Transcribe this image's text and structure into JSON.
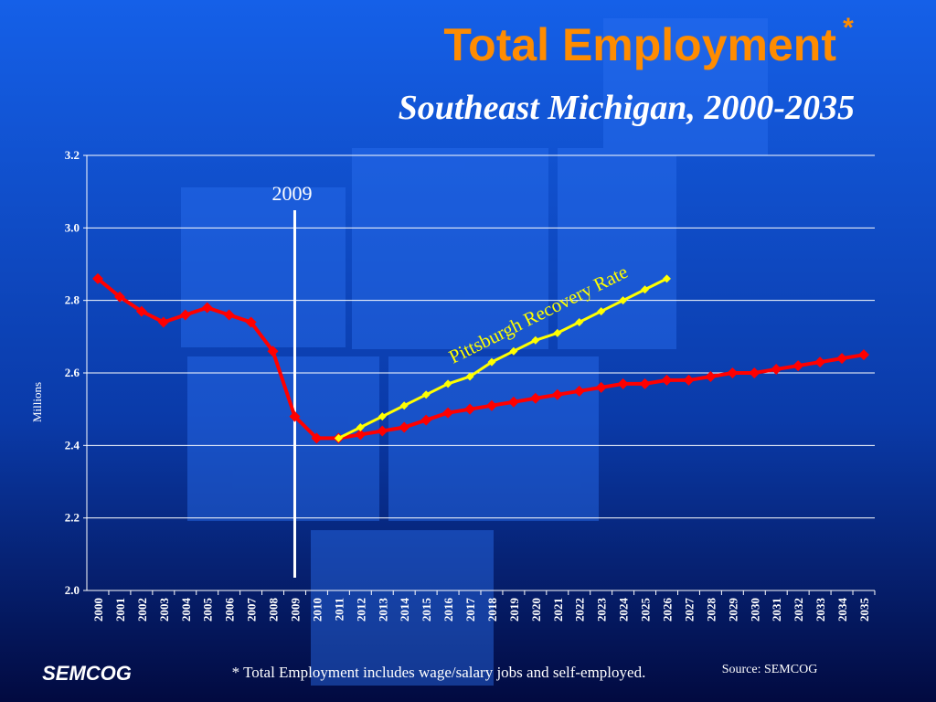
{
  "chart_data": {
    "type": "line",
    "title": "Total Employment",
    "title_mark": "*",
    "subtitle": "Southeast Michigan, 2000-2035",
    "ylabel": "Millions",
    "categories": [
      "2000",
      "2001",
      "2002",
      "2003",
      "2004",
      "2005",
      "2006",
      "2007",
      "2008",
      "2009",
      "2010",
      "2011",
      "2012",
      "2013",
      "2014",
      "2015",
      "2016",
      "2017",
      "2018",
      "2019",
      "2020",
      "2021",
      "2022",
      "2023",
      "2024",
      "2025",
      "2026",
      "2027",
      "2028",
      "2029",
      "2030",
      "2031",
      "2032",
      "2033",
      "2034",
      "2035"
    ],
    "series": [
      {
        "color": "#ff0000",
        "values": [
          2.86,
          2.81,
          2.77,
          2.74,
          2.76,
          2.78,
          2.76,
          2.74,
          2.66,
          2.48,
          2.42,
          2.42,
          2.43,
          2.44,
          2.45,
          2.47,
          2.49,
          2.5,
          2.51,
          2.52,
          2.53,
          2.54,
          2.55,
          2.56,
          2.57,
          2.57,
          2.58,
          2.58,
          2.59,
          2.6,
          2.6,
          2.61,
          2.62,
          2.63,
          2.64,
          2.65
        ]
      },
      {
        "name": "Pittsburgh Recovery Rate",
        "color": "#ffff00",
        "values": [
          null,
          null,
          null,
          null,
          null,
          null,
          null,
          null,
          null,
          null,
          null,
          2.42,
          2.45,
          2.48,
          2.51,
          2.54,
          2.57,
          2.59,
          2.63,
          2.66,
          2.69,
          2.71,
          2.74,
          2.77,
          2.8,
          2.83,
          2.86,
          null,
          null,
          null,
          null,
          null,
          null,
          null,
          null,
          null
        ]
      }
    ],
    "ylim": [
      2.0,
      3.2
    ],
    "yticks": [
      {
        "value": 2.0,
        "label": "2.0"
      },
      2.2,
      2.4,
      2.6,
      2.8,
      {
        "value": 3.0,
        "label": "3.0"
      },
      3.2
    ],
    "grid": true,
    "annotations": [
      {
        "text": "2009"
      }
    ],
    "footnote": "* Total Employment includes wage/salary jobs and self-employed.",
    "source": "Source: SEMCOG",
    "logo": "SEMCOG"
  }
}
